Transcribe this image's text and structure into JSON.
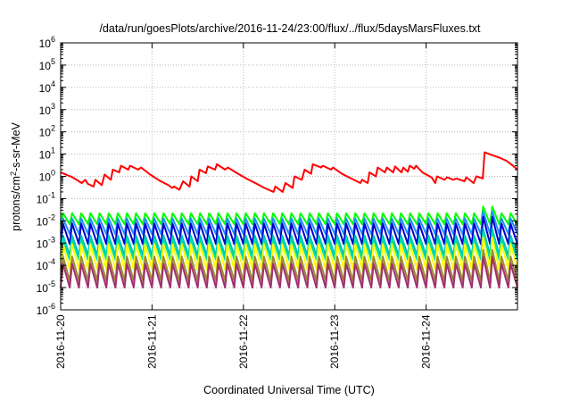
{
  "chart_data": {
    "type": "line",
    "title": "/data/run/goesPlots/archive/2016-11-24/23:00/flux/../flux/5daysMarsFluxes.txt",
    "xlabel": "Coordinated Universal Time (UTC)",
    "ylabel": {
      "base": "protons/cm",
      "sup": "2",
      "rest": "-s-sr-MeV"
    },
    "x_range_days": [
      0,
      5
    ],
    "x_ticks": [
      {
        "label": "2016-11-20",
        "day": 0
      },
      {
        "label": "2016-11-21",
        "day": 1
      },
      {
        "label": "2016-11-22",
        "day": 2
      },
      {
        "label": "2016-11-23",
        "day": 3
      },
      {
        "label": "2016-11-24",
        "day": 4
      }
    ],
    "y_scale": "log",
    "ylim": [
      1e-06,
      1000000.0
    ],
    "y_ticks": [
      {
        "base": "10",
        "exp": "6"
      },
      {
        "base": "10",
        "exp": "5"
      },
      {
        "base": "10",
        "exp": "4"
      },
      {
        "base": "10",
        "exp": "3"
      },
      {
        "base": "10",
        "exp": "2"
      },
      {
        "base": "10",
        "exp": "1"
      },
      {
        "base": "10",
        "exp": "0"
      },
      {
        "base": "10",
        "exp": "-1"
      },
      {
        "base": "10",
        "exp": "-2"
      },
      {
        "base": "10",
        "exp": "-3"
      },
      {
        "base": "10",
        "exp": "-4"
      },
      {
        "base": "10",
        "exp": "-5"
      },
      {
        "base": "10",
        "exp": "-6"
      }
    ],
    "grid": true,
    "series": [
      {
        "color": "#ff0000",
        "points": [
          [
            0.0,
            1.5
          ],
          [
            0.13,
            0.9
          ],
          [
            0.23,
            0.5
          ],
          [
            0.27,
            0.7
          ],
          [
            0.3,
            0.45
          ],
          [
            0.36,
            0.35
          ],
          [
            0.38,
            0.7
          ],
          [
            0.45,
            0.4
          ],
          [
            0.48,
            1.2
          ],
          [
            0.55,
            0.7
          ],
          [
            0.57,
            2.0
          ],
          [
            0.64,
            1.5
          ],
          [
            0.66,
            3.0
          ],
          [
            0.74,
            2.0
          ],
          [
            0.76,
            3.0
          ],
          [
            0.85,
            2.0
          ],
          [
            0.88,
            2.5
          ],
          [
            0.98,
            1.2
          ],
          [
            1.08,
            0.65
          ],
          [
            1.18,
            0.4
          ],
          [
            1.22,
            0.3
          ],
          [
            1.24,
            0.35
          ],
          [
            1.3,
            0.25
          ],
          [
            1.34,
            0.6
          ],
          [
            1.41,
            0.35
          ],
          [
            1.43,
            1.0
          ],
          [
            1.5,
            0.6
          ],
          [
            1.52,
            2.0
          ],
          [
            1.59,
            1.4
          ],
          [
            1.61,
            2.8
          ],
          [
            1.69,
            2.0
          ],
          [
            1.71,
            3.5
          ],
          [
            1.8,
            2.0
          ],
          [
            1.83,
            2.5
          ],
          [
            1.93,
            1.4
          ],
          [
            2.03,
            0.8
          ],
          [
            2.13,
            0.5
          ],
          [
            2.23,
            0.3
          ],
          [
            2.33,
            0.2
          ],
          [
            2.35,
            0.35
          ],
          [
            2.43,
            0.2
          ],
          [
            2.46,
            0.5
          ],
          [
            2.54,
            0.3
          ],
          [
            2.56,
            1.0
          ],
          [
            2.64,
            0.7
          ],
          [
            2.67,
            2.0
          ],
          [
            2.74,
            1.3
          ],
          [
            2.76,
            3.5
          ],
          [
            2.85,
            2.5
          ],
          [
            2.87,
            3.0
          ],
          [
            2.96,
            2.0
          ],
          [
            2.98,
            2.5
          ],
          [
            3.08,
            1.3
          ],
          [
            3.18,
            0.8
          ],
          [
            3.28,
            0.5
          ],
          [
            3.3,
            0.7
          ],
          [
            3.36,
            0.5
          ],
          [
            3.38,
            1.5
          ],
          [
            3.45,
            1.0
          ],
          [
            3.47,
            2.5
          ],
          [
            3.55,
            1.5
          ],
          [
            3.57,
            2.5
          ],
          [
            3.64,
            1.5
          ],
          [
            3.66,
            2.8
          ],
          [
            3.73,
            1.5
          ],
          [
            3.75,
            2.5
          ],
          [
            3.8,
            1.6
          ],
          [
            3.82,
            3.0
          ],
          [
            3.87,
            2.2
          ],
          [
            3.89,
            3.0
          ],
          [
            3.96,
            1.5
          ],
          [
            4.06,
            0.9
          ],
          [
            4.1,
            0.5
          ],
          [
            4.12,
            1.0
          ],
          [
            4.2,
            0.7
          ],
          [
            4.23,
            0.9
          ],
          [
            4.3,
            0.7
          ],
          [
            4.33,
            0.8
          ],
          [
            4.42,
            0.6
          ],
          [
            4.44,
            0.9
          ],
          [
            4.52,
            0.5
          ],
          [
            4.55,
            1.0
          ],
          [
            4.62,
            0.8
          ],
          [
            4.64,
            12.0
          ],
          [
            4.72,
            9.0
          ],
          [
            4.8,
            7.0
          ],
          [
            4.88,
            5.0
          ],
          [
            4.95,
            3.0
          ],
          [
            5.0,
            2.0
          ]
        ]
      },
      {
        "color": "#00ff00",
        "peak": 0.022,
        "trough": 0.007
      },
      {
        "color": "#1e90ff",
        "peak": 0.013,
        "trough": 0.0025
      },
      {
        "color": "#0000cd",
        "peak": 0.0075,
        "trough": 0.0009
      },
      {
        "color": "#00bfbf",
        "peak": 0.0022,
        "trough": 0.00028
      },
      {
        "color": "#00e0a0",
        "peak": 0.0015,
        "trough": 0.00018
      },
      {
        "color": "#ffff00",
        "peak": 0.0009,
        "trough": 6.5e-05
      },
      {
        "color": "#9b8a35",
        "peak": 0.00025,
        "trough": 2e-05
      },
      {
        "color": "#a0306e",
        "peak": 0.00012,
        "trough": 1e-05
      }
    ],
    "sawtooth": {
      "start": 0.0,
      "period": 0.1,
      "rise": 0.025,
      "bump": {
        "start": 4.6,
        "end": 4.75,
        "factor": 2.0
      }
    }
  }
}
